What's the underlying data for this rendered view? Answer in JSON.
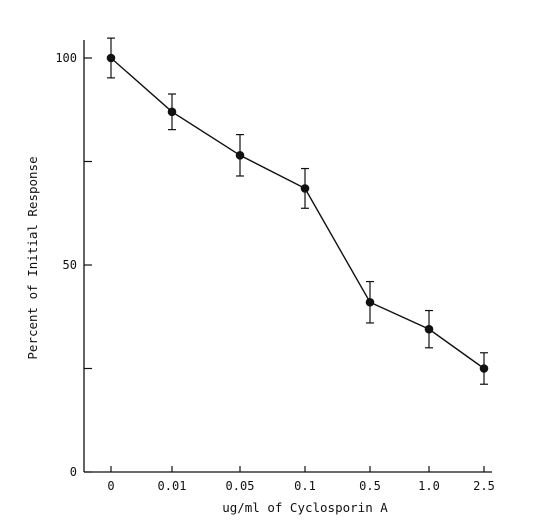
{
  "chart_data": {
    "type": "line",
    "title": "",
    "xlabel": "ug/ml of Cyclosporin A",
    "ylabel": "Percent of Initial Response",
    "categories": [
      "0",
      "0.01",
      "0.05",
      "0.1",
      "0.5",
      "1.0",
      "2.5"
    ],
    "ylim": [
      0,
      100
    ],
    "yticks": [
      0,
      50,
      100
    ],
    "grid": false,
    "legend": "none",
    "series": [
      {
        "values": [
          100,
          87,
          76.5,
          68.5,
          41,
          34.5,
          25
        ],
        "error": [
          4.8,
          4.3,
          5,
          4.8,
          5,
          4.5,
          3.8
        ]
      }
    ]
  }
}
